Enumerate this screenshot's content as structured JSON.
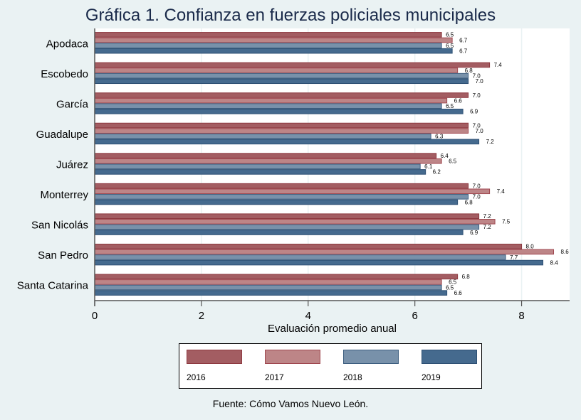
{
  "chart_data": {
    "type": "bar",
    "orientation": "horizontal",
    "title": "Gráfica 1. Confianza en fuerzas policiales municipales",
    "xlabel": "Evaluación promedio anual",
    "ylabel": "",
    "xlim": [
      0,
      8.9
    ],
    "xticks": [
      0,
      2,
      4,
      6,
      8
    ],
    "grid": true,
    "legend_position": "bottom",
    "categories": [
      "Apodaca",
      "Escobedo",
      "García",
      "Guadalupe",
      "Juárez",
      "Monterrey",
      "San Nicolás",
      "San Pedro",
      "Santa Catarina"
    ],
    "series": [
      {
        "name": "2016",
        "color": "#a35d62",
        "edge": "#8e3a41",
        "values": [
          6.5,
          7.4,
          7.0,
          7.0,
          6.4,
          7.0,
          7.2,
          8.0,
          6.8
        ]
      },
      {
        "name": "2017",
        "color": "#bd8587",
        "edge": "#a04850",
        "values": [
          6.7,
          6.8,
          6.6,
          7.0,
          6.5,
          7.4,
          7.5,
          8.6,
          6.5
        ]
      },
      {
        "name": "2018",
        "color": "#7891aa",
        "edge": "#3e5f80",
        "values": [
          6.5,
          7.0,
          6.5,
          6.3,
          6.1,
          7.0,
          7.2,
          7.7,
          6.5
        ]
      },
      {
        "name": "2019",
        "color": "#456a8e",
        "edge": "#2e5074",
        "values": [
          6.7,
          7.0,
          6.9,
          7.2,
          6.2,
          6.8,
          6.9,
          8.4,
          6.6
        ]
      }
    ],
    "source": "Fuente: Cómo Vamos Nuevo León."
  }
}
